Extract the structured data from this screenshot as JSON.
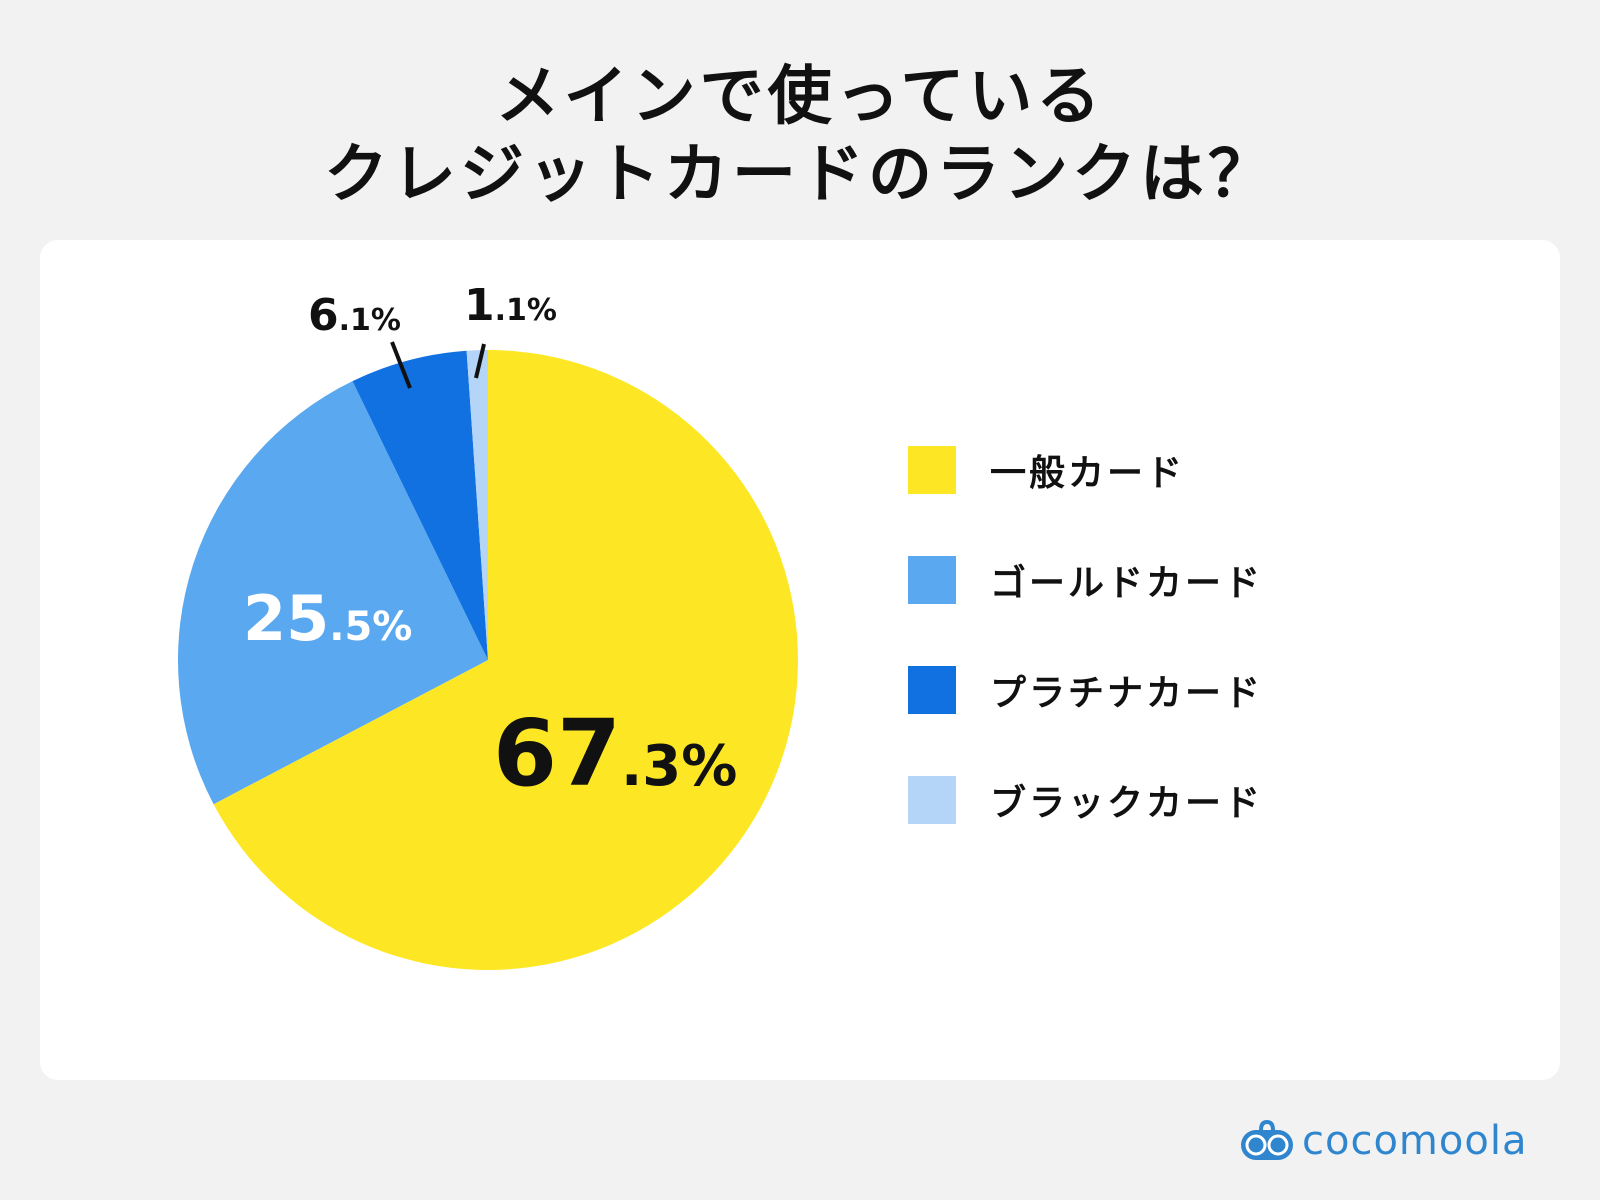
{
  "title": {
    "line1": "メインで使っている",
    "line2": "クレジットカードのランクは？"
  },
  "chart_data": {
    "type": "pie",
    "title": "メインで使っているクレジットカードのランクは？",
    "categories": [
      "一般カード",
      "ゴールドカード",
      "プラチナカード",
      "ブラックカード"
    ],
    "values": [
      67.3,
      25.5,
      6.1,
      1.1
    ],
    "unit": "%",
    "colors": [
      "#fde724",
      "#5aa8f0",
      "#1171e1",
      "#b4d5f8"
    ],
    "start_angle": "12 o'clock",
    "direction": "clockwise",
    "data_labels": [
      {
        "int": "67",
        "dec": ".3%",
        "position": "inside",
        "color": "#111111"
      },
      {
        "int": "25",
        "dec": ".5%",
        "position": "inside",
        "color": "#ffffff"
      },
      {
        "int": "6",
        "dec": ".1%",
        "position": "outside",
        "color": "#111111"
      },
      {
        "int": "1",
        "dec": ".1%",
        "position": "outside",
        "color": "#111111"
      }
    ],
    "legend_position": "right"
  },
  "legend": [
    {
      "label": "一般カード",
      "color": "#fde724"
    },
    {
      "label": "ゴールドカード",
      "color": "#5aa8f0"
    },
    {
      "label": "プラチナカード",
      "color": "#1171e1"
    },
    {
      "label": "ブラックカード",
      "color": "#b4d5f8"
    }
  ],
  "brand": {
    "name": "cocomoola",
    "color": "#2f86cf"
  }
}
